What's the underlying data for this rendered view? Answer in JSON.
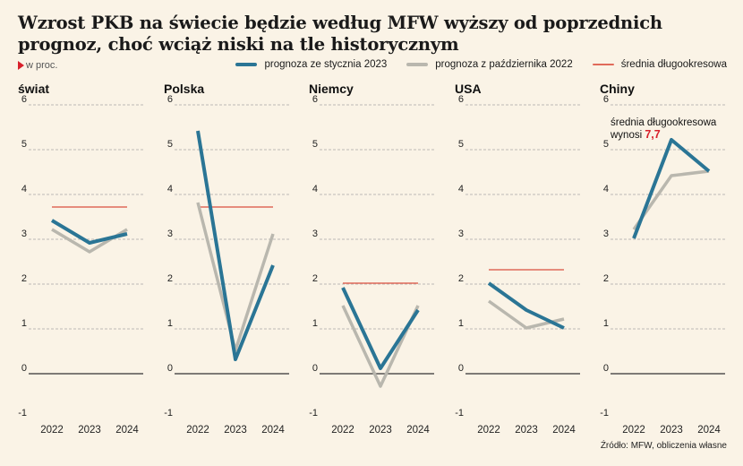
{
  "header": {
    "title": "Wzrost PKB na świecie będzie według MFW wyższy od poprzednich prognoz, choć wciąż niski na tle historycznym",
    "unit": "w proc."
  },
  "legend": {
    "jan": "prognoza ze stycznia 2023",
    "oct": "prognoza z października 2022",
    "avg": "średnia długookresowa"
  },
  "source": "Źródło: MFW, obliczenia własne",
  "colors": {
    "jan": "#2a7595",
    "oct": "#b9b7ae",
    "avg": "#e06a5a",
    "grid": "#a8a8a8",
    "zero": "#333333",
    "annotation_value": "#d8202b"
  },
  "chart_data": [
    {
      "type": "line",
      "title": "świat",
      "x": [
        "2022",
        "2023",
        "2024"
      ],
      "ylim": [
        -1,
        6
      ],
      "yticks": [
        -1,
        0,
        1,
        2,
        3,
        4,
        5,
        6
      ],
      "series": [
        {
          "name": "prognoza ze stycznia 2023",
          "values": [
            3.4,
            2.9,
            3.1
          ]
        },
        {
          "name": "prognoza z października 2022",
          "values": [
            3.2,
            2.7,
            3.2
          ]
        }
      ],
      "average": 3.7
    },
    {
      "type": "line",
      "title": "Polska",
      "x": [
        "2022",
        "2023",
        "2024"
      ],
      "ylim": [
        -1,
        6
      ],
      "yticks": [
        -1,
        0,
        1,
        2,
        3,
        4,
        5,
        6
      ],
      "series": [
        {
          "name": "prognoza ze stycznia 2023",
          "values": [
            5.4,
            0.3,
            2.4
          ]
        },
        {
          "name": "prognoza z października 2022",
          "values": [
            3.8,
            0.5,
            3.1
          ]
        }
      ],
      "average": 3.7
    },
    {
      "type": "line",
      "title": "Niemcy",
      "x": [
        "2022",
        "2023",
        "2024"
      ],
      "ylim": [
        -1,
        6
      ],
      "yticks": [
        -1,
        0,
        1,
        2,
        3,
        4,
        5,
        6
      ],
      "series": [
        {
          "name": "prognoza ze stycznia 2023",
          "values": [
            1.9,
            0.1,
            1.4
          ]
        },
        {
          "name": "prognoza z października 2022",
          "values": [
            1.5,
            -0.3,
            1.5
          ]
        }
      ],
      "average": 2.0
    },
    {
      "type": "line",
      "title": "USA",
      "x": [
        "2022",
        "2023",
        "2024"
      ],
      "ylim": [
        -1,
        6
      ],
      "yticks": [
        -1,
        0,
        1,
        2,
        3,
        4,
        5,
        6
      ],
      "series": [
        {
          "name": "prognoza ze stycznia 2023",
          "values": [
            2.0,
            1.4,
            1.0
          ]
        },
        {
          "name": "prognoza z października 2022",
          "values": [
            1.6,
            1.0,
            1.2
          ]
        }
      ],
      "average": 2.3
    },
    {
      "type": "line",
      "title": "Chiny",
      "x": [
        "2022",
        "2023",
        "2024"
      ],
      "ylim": [
        -1,
        6
      ],
      "yticks": [
        -1,
        0,
        1,
        2,
        3,
        4,
        5,
        6
      ],
      "series": [
        {
          "name": "prognoza ze stycznia 2023",
          "values": [
            3.0,
            5.2,
            4.5
          ]
        },
        {
          "name": "prognoza z października 2022",
          "values": [
            3.2,
            4.4,
            4.5
          ]
        }
      ],
      "average_note": {
        "label": "średnia długookresowa",
        "prefix": "wynosi",
        "value": "7,7"
      }
    }
  ]
}
